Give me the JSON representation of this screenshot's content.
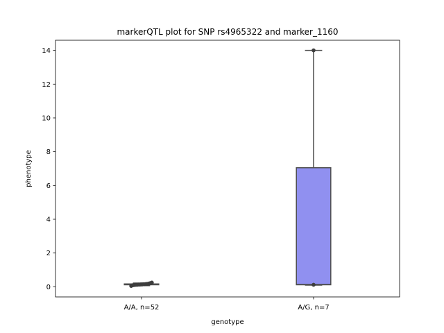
{
  "chart_data": {
    "type": "box",
    "title": "markerQTL plot for SNP rs4965322 and marker_1160",
    "xlabel": "genotype",
    "ylabel": "phenotype",
    "categories": [
      "A/A, n=52",
      "A/G, n=7"
    ],
    "ylim": [
      -0.6,
      14.6
    ],
    "yticks": [
      0,
      2,
      4,
      6,
      8,
      10,
      12,
      14
    ],
    "ytick_labels": [
      "0",
      "2",
      "4",
      "6",
      "8",
      "10",
      "12",
      "14"
    ],
    "grid": false,
    "box_color": "#9090f0",
    "edge_color": "#4d4d4d",
    "series": [
      {
        "category": "A/A, n=52",
        "min": 0.07,
        "q1": 0.12,
        "median": 0.14,
        "q3": 0.17,
        "max": 0.22,
        "points": [
          0.05,
          0.09,
          0.1,
          0.11,
          0.12,
          0.12,
          0.13,
          0.13,
          0.14,
          0.14,
          0.15,
          0.15,
          0.16,
          0.17,
          0.18,
          0.2,
          0.22,
          0.25
        ]
      },
      {
        "category": "A/G, n=7",
        "min": 0.1,
        "q1": 0.12,
        "median": 0.14,
        "q3": 7.05,
        "max": 14.0,
        "points": [
          0.12,
          14.0
        ]
      }
    ]
  }
}
